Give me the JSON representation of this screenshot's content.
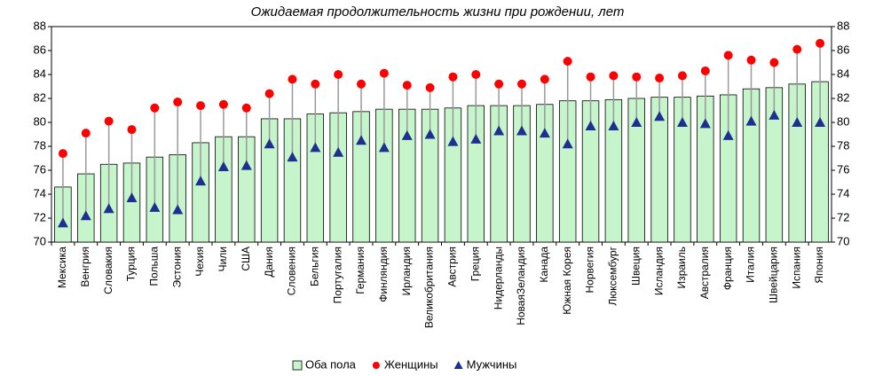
{
  "chart_data": {
    "type": "bar",
    "title": "Ожидаемая продолжительность жизни при рождении, лет",
    "categories": [
      "Мексика",
      "Венгрия",
      "Словакия",
      "Турция",
      "Польша",
      "Эстония",
      "Чехия",
      "Чили",
      "США",
      "Дания",
      "Словения",
      "Бельгия",
      "Португалия",
      "Германия",
      "Финляндия",
      "Ирландия",
      "Великобритания",
      "Австрия",
      "Греция",
      "Нидерланды",
      "НоваяЗеландия",
      "Канада",
      "Южная Корея",
      "Норвегия",
      "Люксембург",
      "Швеция",
      "Исландия",
      "Израиль",
      "Австралия",
      "Франция",
      "Италия",
      "Швейцария",
      "Испания",
      "Япония"
    ],
    "series": [
      {
        "name": "Оба пола",
        "color": "#c6f5cc",
        "values": [
          74.6,
          75.7,
          76.5,
          76.6,
          77.1,
          77.3,
          78.3,
          78.8,
          78.8,
          80.3,
          80.3,
          80.7,
          80.8,
          80.9,
          81.1,
          81.1,
          81.1,
          81.2,
          81.4,
          81.4,
          81.4,
          81.5,
          81.8,
          81.8,
          81.9,
          82.0,
          82.1,
          82.1,
          82.2,
          82.3,
          82.8,
          82.9,
          83.2,
          83.4
        ]
      },
      {
        "name": "Женщины",
        "color": "#ff0000",
        "values": [
          77.4,
          79.1,
          80.1,
          79.4,
          81.2,
          81.7,
          81.4,
          81.5,
          81.2,
          82.4,
          83.6,
          83.2,
          84.0,
          83.2,
          84.1,
          83.1,
          82.9,
          83.8,
          84.0,
          83.2,
          83.2,
          83.6,
          85.1,
          83.8,
          83.9,
          83.8,
          83.7,
          83.9,
          84.3,
          85.6,
          85.2,
          85.0,
          86.1,
          86.6
        ]
      },
      {
        "name": "Мужчины",
        "color": "#1f2f8f",
        "values": [
          71.6,
          72.2,
          72.8,
          73.7,
          72.9,
          72.7,
          75.1,
          76.3,
          76.4,
          78.2,
          77.1,
          77.9,
          77.5,
          78.5,
          77.9,
          78.9,
          79.0,
          78.4,
          78.6,
          79.3,
          79.3,
          79.1,
          78.2,
          79.7,
          79.7,
          80.0,
          80.5,
          80.0,
          79.9,
          78.9,
          80.1,
          80.6,
          80.0,
          80.0
        ]
      }
    ],
    "ylim": [
      70,
      88
    ],
    "yticks": [
      70,
      72,
      74,
      76,
      78,
      80,
      82,
      84,
      86,
      88
    ],
    "y2lim": [
      70,
      88
    ],
    "y2ticks": [
      70,
      72,
      74,
      76,
      78,
      80,
      82,
      84,
      86,
      88
    ]
  }
}
